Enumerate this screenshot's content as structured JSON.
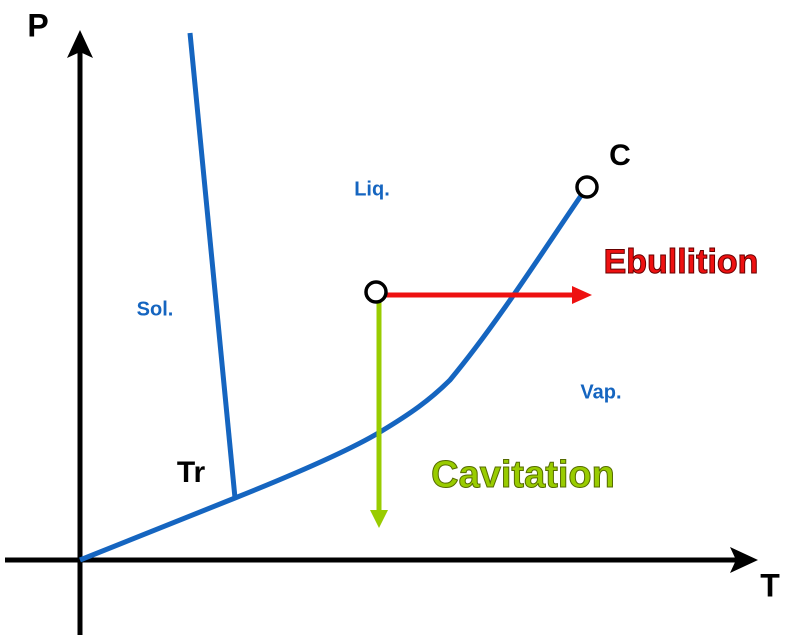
{
  "axes": {
    "y_label": "P",
    "x_label": "T"
  },
  "points": {
    "critical": "C",
    "triple": "Tr"
  },
  "regions": {
    "liquid": "Liq.",
    "solid": "Sol.",
    "vapor": "Vap."
  },
  "processes": {
    "ebullition": "Ebullition",
    "cavitation": "Cavitation"
  }
}
